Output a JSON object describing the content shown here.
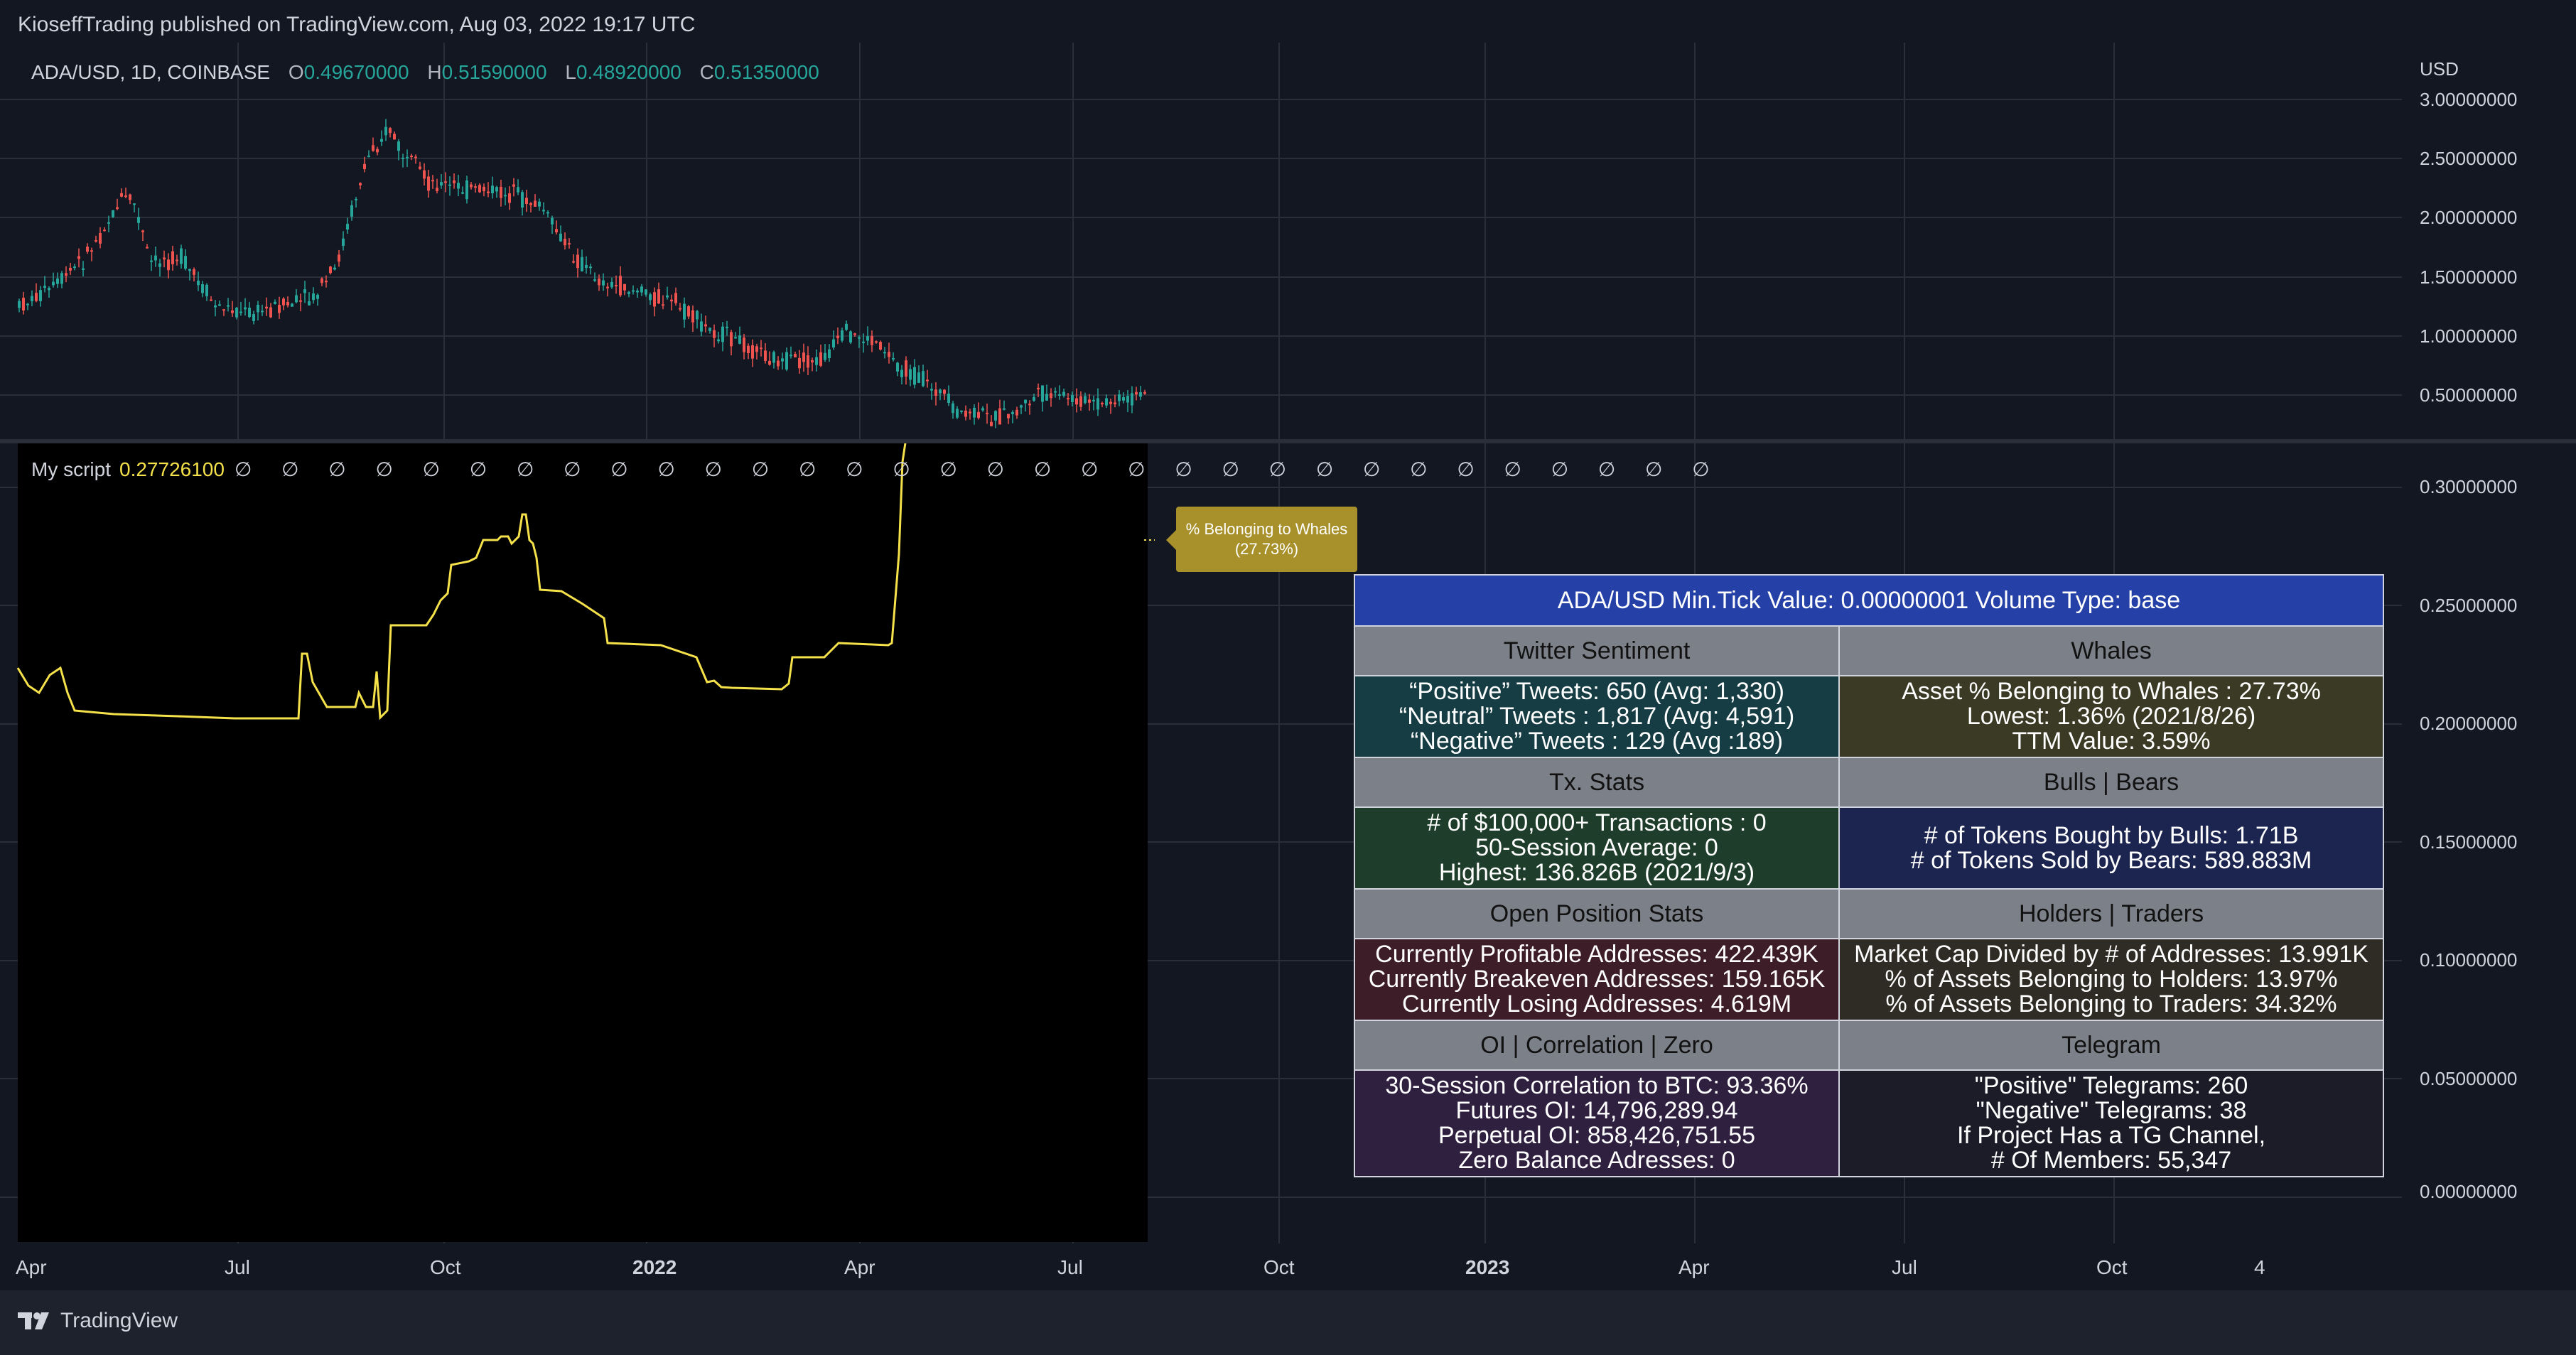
{
  "header": {
    "published": "KioseffTrading published on TradingView.com, Aug 03, 2022 19:17 UTC"
  },
  "symbol_legend": {
    "symbol": "ADA/USD, 1D, COINBASE",
    "o_label": "O",
    "o_value": "0.49670000",
    "h_label": "H",
    "h_value": "0.51590000",
    "l_label": "L",
    "l_value": "0.48920000",
    "c_label": "C",
    "c_value": "0.51350000"
  },
  "indicator_legend": {
    "name": "My script",
    "value": "0.27726100",
    "zeros": "∅ ∅ ∅ ∅ ∅ ∅ ∅ ∅ ∅ ∅ ∅ ∅ ∅ ∅ ∅ ∅ ∅ ∅ ∅ ∅ ∅ ∅ ∅ ∅ ∅ ∅ ∅ ∅ ∅ ∅ ∅ ∅"
  },
  "price_axis": {
    "currency": "USD",
    "top_ticks": [
      "3.00000000",
      "2.50000000",
      "2.00000000",
      "1.50000000",
      "1.00000000",
      "0.50000000"
    ],
    "bottom_ticks": [
      "0.30000000",
      "0.25000000",
      "0.20000000",
      "0.15000000",
      "0.10000000",
      "0.05000000",
      "0.00000000"
    ]
  },
  "time_axis": {
    "ticks": [
      "Apr",
      "Jul",
      "Oct",
      "2022",
      "Apr",
      "Jul",
      "Oct",
      "2023",
      "Apr",
      "Jul",
      "Oct",
      "4"
    ]
  },
  "callout": {
    "line1": "% Belonging to Whales",
    "line2": "(27.73%)"
  },
  "table": {
    "header": "ADA/USD Min.Tick Value: 0.00000001 Volume Type: base",
    "twitter": {
      "title": "Twitter Sentiment",
      "l1": "“Positive” Tweets: 650 (Avg: 1,330)",
      "l2": "“Neutral” Tweets : 1,817 (Avg: 4,591)",
      "l3": "“Negative” Tweets : 129 (Avg :189)"
    },
    "whales": {
      "title": "Whales",
      "l1": "Asset % Belonging to Whales : 27.73%",
      "l2": "Lowest: 1.36% (2021/8/26)",
      "l3": "TTM Value: 3.59%"
    },
    "tx": {
      "title": "Tx. Stats",
      "l1": "# of $100,000+ Transactions : 0",
      "l2": "50-Session Average: 0",
      "l3": "Highest: 136.826B (2021/9/3)"
    },
    "bulls": {
      "title": "Bulls | Bears",
      "l1": "# of Tokens Bought by Bulls: 1.71B",
      "l2": "# of Tokens Sold by Bears: 589.883M"
    },
    "open": {
      "title": "Open Position Stats",
      "l1": "Currently Profitable Addresses: 422.439K",
      "l2": "Currently Breakeven Addresses: 159.165K",
      "l3": "Currently Losing Addresses: 4.619M"
    },
    "holders": {
      "title": "Holders | Traders",
      "l1": "Market Cap Divided by # of Addresses: 13.991K",
      "l2": "% of Assets Belonging to Holders: 13.97%",
      "l3": "% of Assets Belonging to Traders: 34.32%"
    },
    "oi": {
      "title": "OI | Correlation | Zero",
      "l1": "30-Session Correlation to BTC: 93.36%",
      "l2": "Futures OI: 14,796,289.94",
      "l3": "Perpetual OI: 858,426,751.55",
      "l4": "Zero Balance Adresses: 0"
    },
    "telegram": {
      "title": "Telegram",
      "l1": "\"Positive\" Telegrams: 260",
      "l2": "\"Negative\" Telegrams: 38",
      "l3": "If Project Has a TG Channel,",
      "l4": "# Of Members: 55,347"
    }
  },
  "footer": {
    "brand": "TradingView"
  },
  "colors": {
    "up": "#26a69a",
    "down": "#ef5350",
    "indicator": "#f5e14a",
    "background": "#131722"
  }
}
